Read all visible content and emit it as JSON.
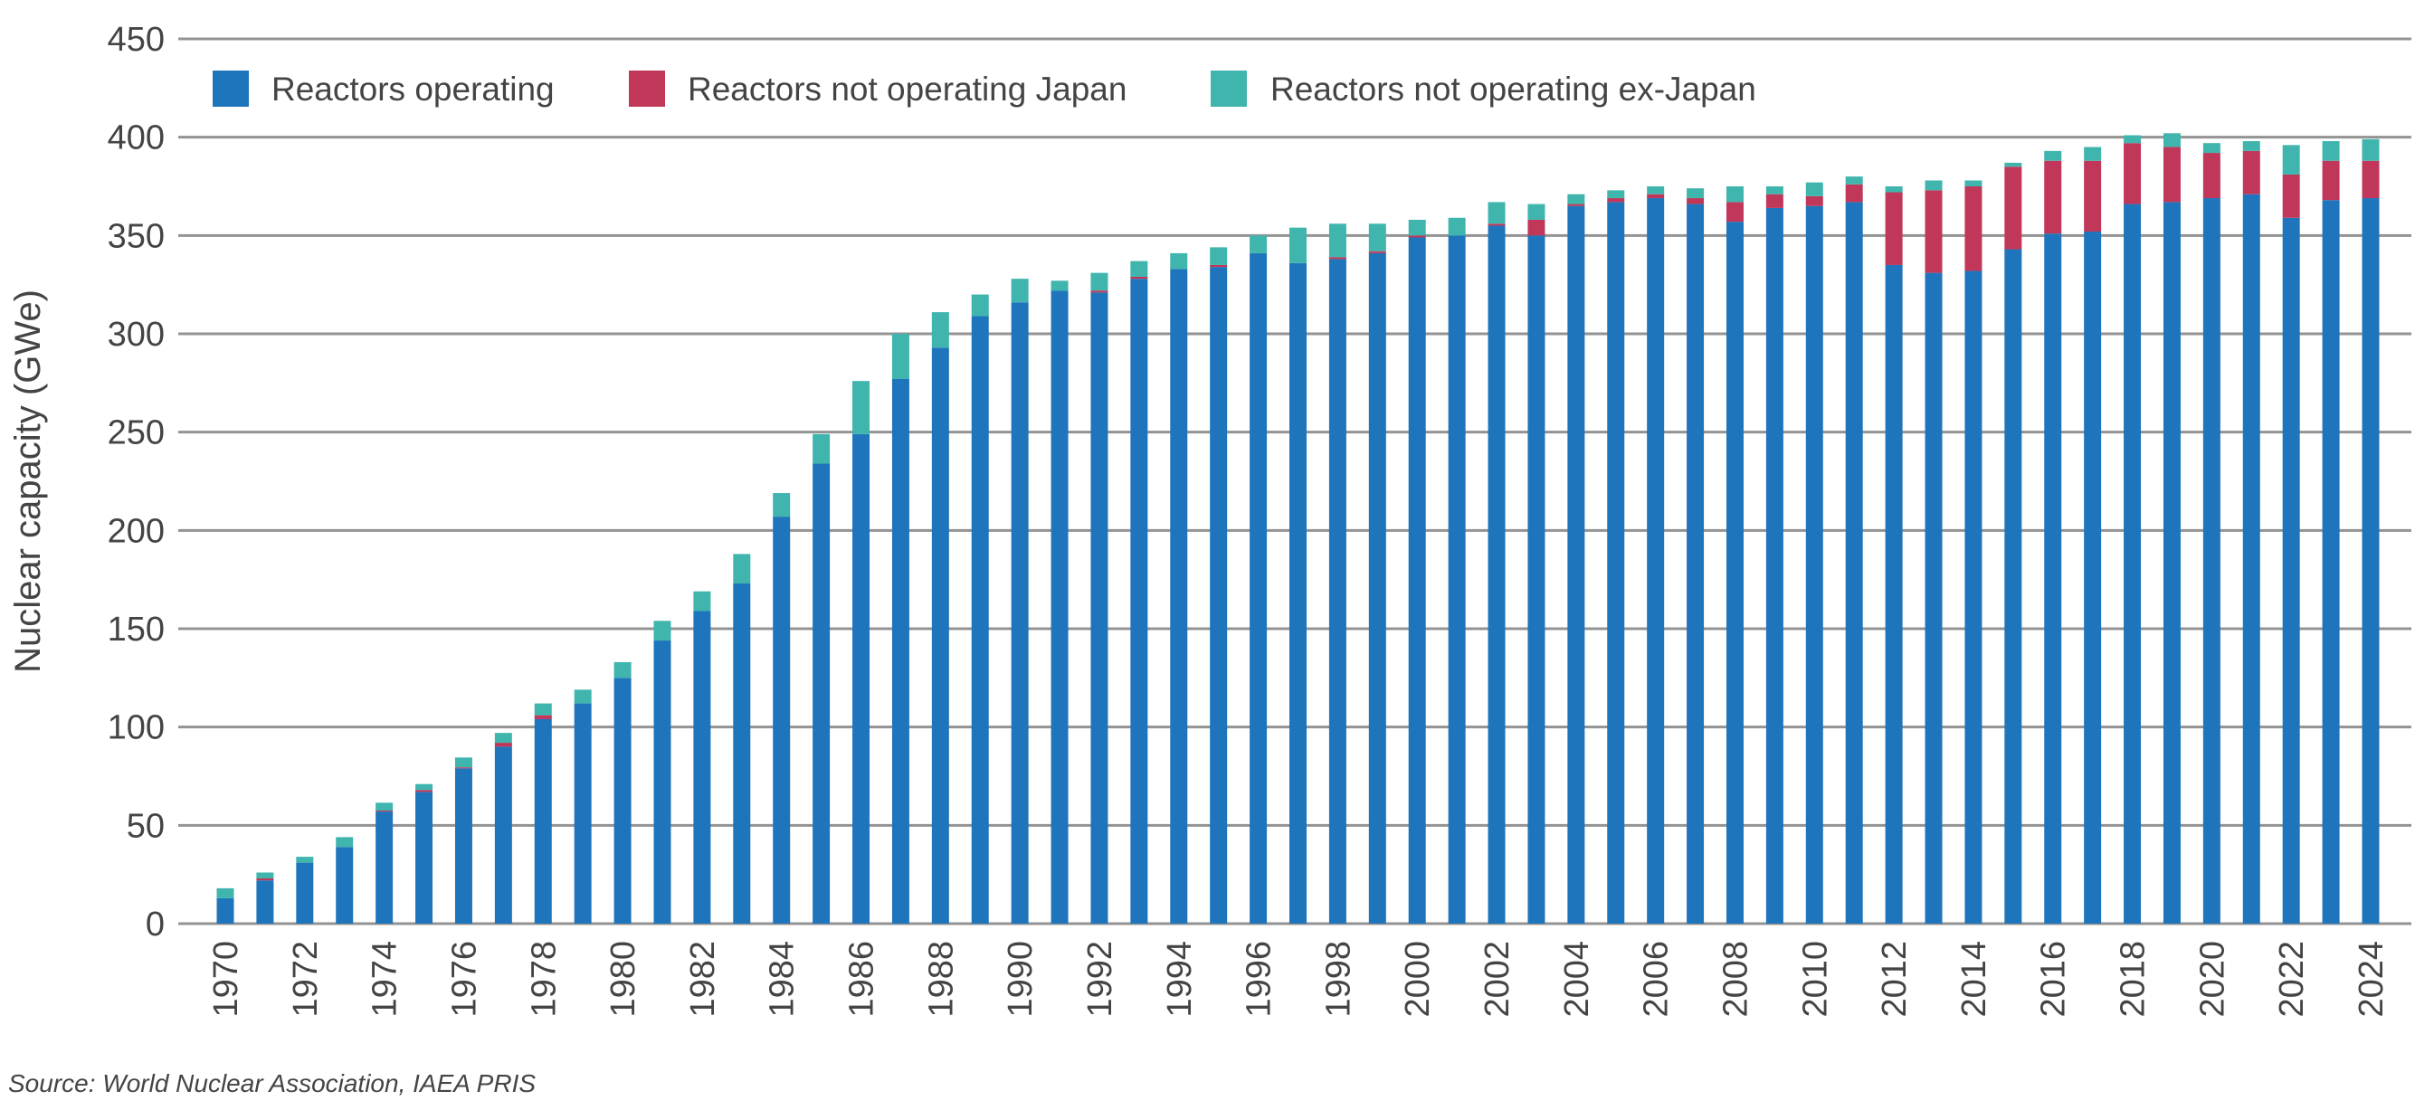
{
  "chart_data": {
    "type": "bar",
    "stacked": true,
    "title": "",
    "xlabel": "",
    "ylabel": "Nuclear capacity (GWe)",
    "ylim": [
      0,
      450
    ],
    "yticks": [
      0,
      50,
      100,
      150,
      200,
      250,
      300,
      350,
      400,
      450
    ],
    "grid": true,
    "legend_position": "top-left",
    "source": "Source: World Nuclear Association, IAEA PRIS",
    "categories": [
      1970,
      1971,
      1972,
      1973,
      1974,
      1975,
      1976,
      1977,
      1978,
      1979,
      1980,
      1981,
      1982,
      1983,
      1984,
      1985,
      1986,
      1987,
      1988,
      1989,
      1990,
      1991,
      1992,
      1993,
      1994,
      1995,
      1996,
      1997,
      1998,
      1999,
      2000,
      2001,
      2002,
      2003,
      2004,
      2005,
      2006,
      2007,
      2008,
      2009,
      2010,
      2011,
      2012,
      2013,
      2014,
      2015,
      2016,
      2017,
      2018,
      2019,
      2020,
      2021,
      2022,
      2023,
      2024
    ],
    "series": [
      {
        "name": "Reactors operating",
        "color": "#1f75bb",
        "values": [
          13,
          22,
          31,
          39,
          57,
          67,
          79,
          90,
          104,
          112,
          125,
          144,
          159,
          173,
          207,
          234,
          249,
          277,
          293,
          309,
          316,
          322,
          321,
          328,
          333,
          334,
          341,
          336,
          338,
          341,
          349,
          350,
          355,
          350,
          365,
          367,
          369,
          366,
          357,
          364,
          365,
          367,
          335,
          331,
          332,
          343,
          351,
          352,
          366,
          367,
          369,
          371,
          359,
          368,
          369
        ]
      },
      {
        "name": "Reactors not operating Japan",
        "color": "#c0375a",
        "values": [
          0,
          1,
          0,
          0,
          0.5,
          1,
          0.5,
          2,
          2,
          0,
          0,
          0,
          0,
          0,
          0,
          0,
          0,
          0,
          0,
          0,
          0,
          0,
          1,
          1,
          0,
          1,
          0,
          0,
          1,
          1,
          1,
          0,
          1,
          8,
          1,
          2,
          2,
          3,
          10,
          7,
          5,
          9,
          37,
          42,
          43,
          42,
          37,
          36,
          31,
          28,
          23,
          22,
          22,
          20,
          19
        ]
      },
      {
        "name": "Reactors not operating ex-Japan",
        "color": "#3fb5ad",
        "values": [
          5,
          3,
          3,
          5,
          4,
          3,
          5,
          5,
          6,
          7,
          8,
          10,
          10,
          15,
          12,
          15,
          27,
          23,
          18,
          11,
          12,
          5,
          9,
          8,
          8,
          9,
          9,
          18,
          17,
          14,
          8,
          9,
          11,
          8,
          5,
          4,
          4,
          5,
          8,
          4,
          7,
          4,
          3,
          5,
          3,
          2,
          5,
          7,
          4,
          7,
          5,
          5,
          15,
          10,
          11
        ]
      }
    ]
  }
}
